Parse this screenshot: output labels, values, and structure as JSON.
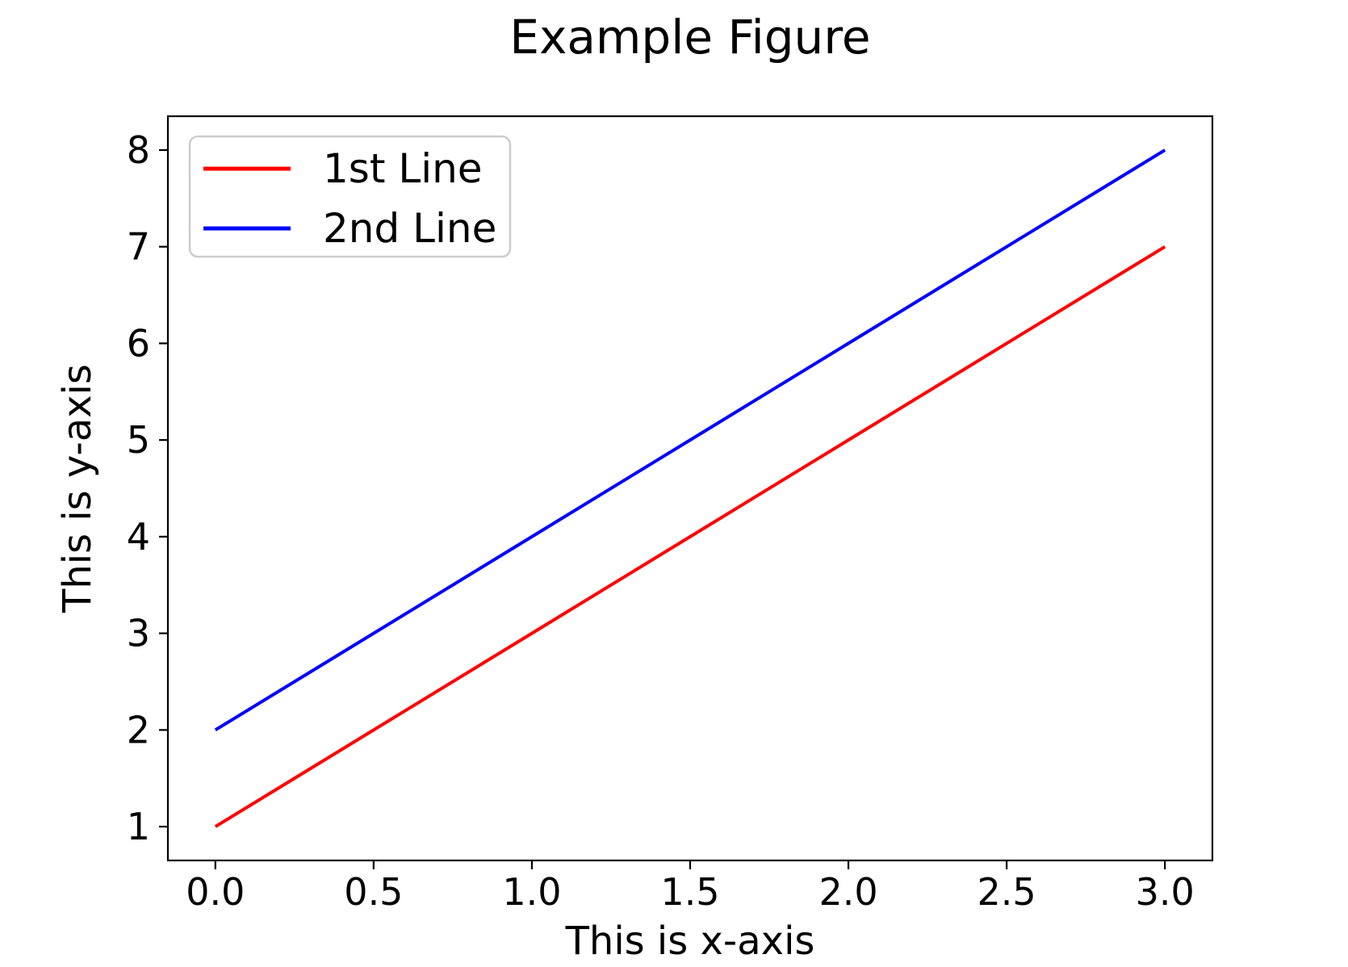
{
  "chart_data": {
    "type": "line",
    "title": "Example Figure",
    "xlabel": "This is x-axis",
    "ylabel": "This is y-axis",
    "series": [
      {
        "name": "1st Line",
        "color": "#ff0000",
        "x": [
          0,
          1,
          2,
          3
        ],
        "y": [
          1,
          3,
          5,
          7
        ]
      },
      {
        "name": "2nd Line",
        "color": "#0000ff",
        "x": [
          0,
          1,
          2,
          3
        ],
        "y": [
          2,
          4,
          6,
          8
        ]
      }
    ],
    "x_ticks": [
      {
        "value": 0.0,
        "label": "0.0"
      },
      {
        "value": 0.5,
        "label": "0.5"
      },
      {
        "value": 1.0,
        "label": "1.0"
      },
      {
        "value": 1.5,
        "label": "1.5"
      },
      {
        "value": 2.0,
        "label": "2.0"
      },
      {
        "value": 2.5,
        "label": "2.5"
      },
      {
        "value": 3.0,
        "label": "3.0"
      }
    ],
    "y_ticks": [
      {
        "value": 1,
        "label": "1"
      },
      {
        "value": 2,
        "label": "2"
      },
      {
        "value": 3,
        "label": "3"
      },
      {
        "value": 4,
        "label": "4"
      },
      {
        "value": 5,
        "label": "5"
      },
      {
        "value": 6,
        "label": "6"
      },
      {
        "value": 7,
        "label": "7"
      },
      {
        "value": 8,
        "label": "8"
      }
    ],
    "xlim": [
      -0.15,
      3.15
    ],
    "ylim": [
      0.65,
      8.35
    ],
    "grid": false,
    "legend_position": "upper-left",
    "colors": {
      "background": "#ffffff",
      "text": "#000000",
      "spine": "#000000",
      "legend_border": "#cccccc",
      "legend_background": "#ffffff"
    }
  }
}
